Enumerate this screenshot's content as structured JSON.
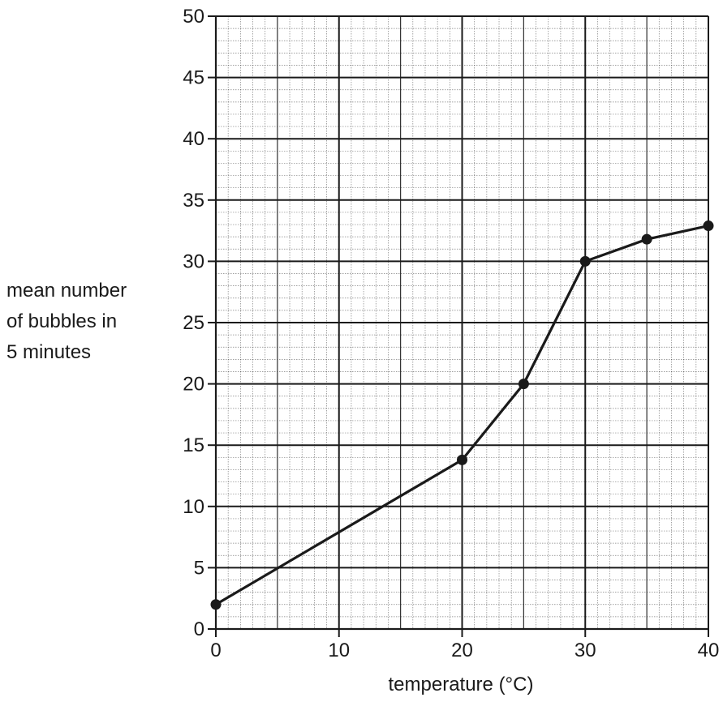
{
  "chart_data": {
    "type": "line",
    "title": "",
    "xlabel": "temperature (°C)",
    "ylabel_lines": [
      "mean number",
      "of bubbles in",
      "5 minutes"
    ],
    "x": [
      0,
      20,
      25,
      30,
      35,
      40
    ],
    "series": [
      {
        "values": [
          2,
          13.8,
          20,
          30,
          31.8,
          32.9
        ]
      }
    ],
    "xlim": [
      0,
      40
    ],
    "ylim": [
      0,
      50
    ],
    "x_ticks": [
      0,
      10,
      20,
      30,
      40
    ],
    "y_ticks": [
      0,
      5,
      10,
      15,
      20,
      25,
      30,
      35,
      40,
      45,
      50
    ],
    "grid": true,
    "markers": "filled-circle",
    "line_color": "#1a1a1a",
    "grid_color": "#1a1a1a"
  }
}
